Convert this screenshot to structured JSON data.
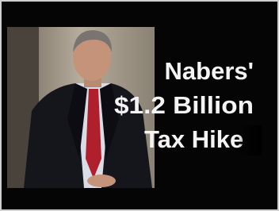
{
  "overlay": {
    "lines": [
      "Nabers'",
      "$1.2 Billion",
      "Tax Hike"
    ]
  }
}
